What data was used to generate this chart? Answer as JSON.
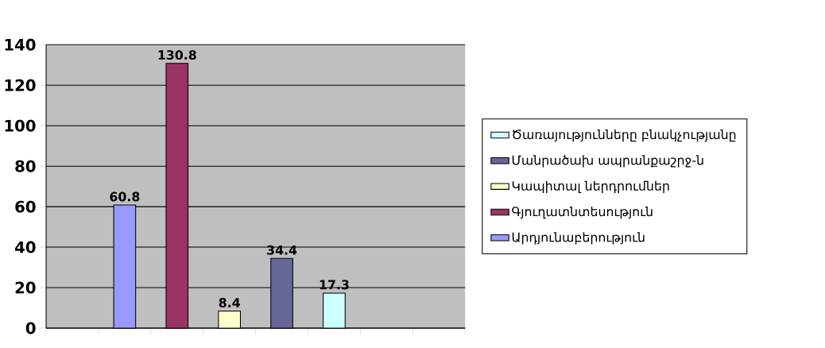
{
  "chart_data": {
    "type": "bar",
    "categories": [
      null,
      null,
      null,
      null,
      null,
      null,
      null,
      null
    ],
    "series": [
      {
        "name": "Արդյունաբերություն",
        "color": "#9999ff",
        "values": [
          null,
          60.8,
          null,
          null,
          null,
          null,
          null,
          null
        ]
      },
      {
        "name": "Գյուղատնտեսություն",
        "color": "#993366",
        "values": [
          null,
          null,
          130.8,
          null,
          null,
          null,
          null,
          null
        ]
      },
      {
        "name": "Կապիտալ ներդրումներ",
        "color": "#ffffcc",
        "values": [
          null,
          null,
          null,
          8.4,
          null,
          null,
          null,
          null
        ]
      },
      {
        "name": "Մանրածախ ապրանքաշրջ-ն",
        "color": "#666699",
        "values": [
          null,
          null,
          null,
          null,
          34.4,
          null,
          null,
          null
        ]
      },
      {
        "name": "Ծառայությունները բնակչությանը",
        "color": "#ccffff",
        "values": [
          null,
          null,
          null,
          null,
          null,
          17.3,
          null,
          null
        ]
      }
    ],
    "ylim": [
      0,
      140
    ],
    "yticks": [
      0,
      20,
      40,
      60,
      80,
      100,
      120,
      140
    ],
    "grid": "y",
    "legend": "right",
    "data_labels": true
  }
}
